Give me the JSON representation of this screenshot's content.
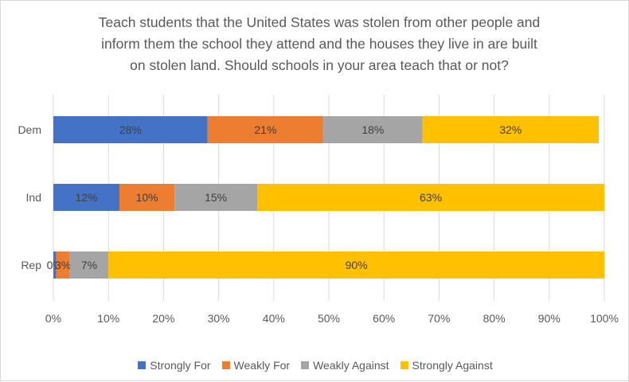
{
  "chart_data": {
    "type": "bar",
    "orientation": "horizontal",
    "stacked": true,
    "title_lines": [
      "Teach students that the United States was stolen from other people and",
      "inform them the school they attend and the houses they live in are built",
      "on stolen land. Should schools in your area teach that or not?"
    ],
    "categories": [
      "Dem",
      "Ind",
      "Rep"
    ],
    "series": [
      {
        "name": "Strongly For",
        "color": "#4472C4",
        "values": [
          28,
          12,
          0.5
        ],
        "labels": [
          "28%",
          "12%",
          "0%"
        ]
      },
      {
        "name": "Weakly For",
        "color": "#ED7D31",
        "values": [
          21,
          10,
          2.5
        ],
        "labels": [
          "21%",
          "10%",
          "3%"
        ]
      },
      {
        "name": "Weakly Against",
        "color": "#A5A5A5",
        "values": [
          18,
          15,
          7
        ],
        "labels": [
          "18%",
          "15%",
          "7%"
        ]
      },
      {
        "name": "Strongly Against",
        "color": "#FFC000",
        "values": [
          32,
          63,
          90
        ],
        "labels": [
          "32%",
          "63%",
          "90%"
        ]
      }
    ],
    "x_ticks": [
      "0%",
      "10%",
      "20%",
      "30%",
      "40%",
      "50%",
      "60%",
      "70%",
      "80%",
      "90%",
      "100%"
    ],
    "xlim": [
      0,
      100
    ],
    "grid": true,
    "legend_position": "bottom"
  }
}
